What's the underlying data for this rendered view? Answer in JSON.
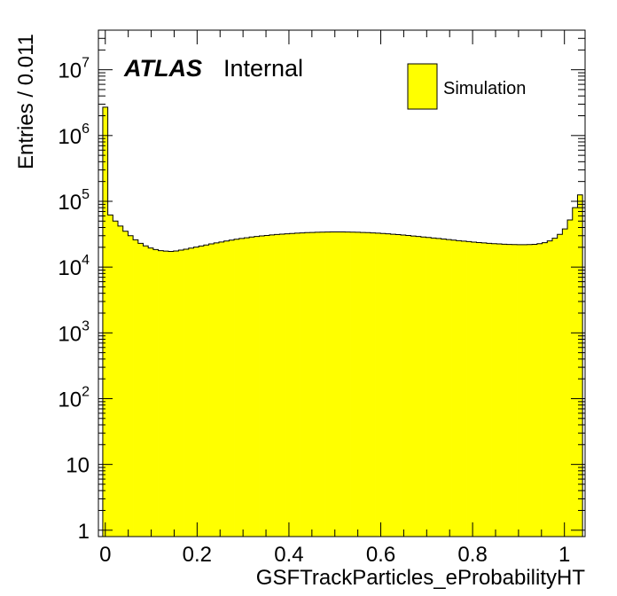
{
  "chart_data": {
    "type": "histogram",
    "xlabel": "GSFTrackParticles_eProbabilityHT",
    "ylabel": "Entries / 0.011",
    "xlim": [
      -0.015,
      1.045
    ],
    "ylim": [
      0.8,
      40000000
    ],
    "yscale": "log",
    "grid": false,
    "legend_position": "top-right",
    "x_ticks": [
      0,
      0.2,
      0.4,
      0.6,
      0.8,
      1
    ],
    "x_tick_labels": [
      "0",
      "0.2",
      "0.4",
      "0.6",
      "0.8",
      "1"
    ],
    "y_ticks": [
      {
        "value": 1,
        "base": "1",
        "exp": ""
      },
      {
        "value": 10,
        "base": "10",
        "exp": ""
      },
      {
        "value": 100,
        "base": "10",
        "exp": "2"
      },
      {
        "value": 1000,
        "base": "10",
        "exp": "3"
      },
      {
        "value": 10000,
        "base": "10",
        "exp": "4"
      },
      {
        "value": 100000,
        "base": "10",
        "exp": "5"
      },
      {
        "value": 1000000,
        "base": "10",
        "exp": "6"
      },
      {
        "value": 10000000,
        "base": "10",
        "exp": "7"
      }
    ],
    "bin_start": -0.0055,
    "bin_width": 0.011,
    "counts": [
      2700000,
      62000,
      50000,
      42000,
      35000,
      30000,
      26000,
      23000,
      21000,
      19500,
      18500,
      17800,
      17500,
      17300,
      17600,
      18100,
      18700,
      19400,
      20100,
      20900,
      21700,
      22500,
      23300,
      24100,
      24900,
      25700,
      26500,
      27200,
      27900,
      28600,
      29200,
      29800,
      30300,
      30800,
      31300,
      31700,
      32100,
      32500,
      32800,
      33100,
      33400,
      33600,
      33800,
      34000,
      34100,
      34200,
      34200,
      34200,
      34100,
      34000,
      33800,
      33600,
      33400,
      33100,
      32800,
      32400,
      32000,
      31600,
      31200,
      30700,
      30200,
      29700,
      29200,
      28700,
      28200,
      27700,
      27200,
      26700,
      26200,
      25700,
      25200,
      24800,
      24400,
      24000,
      23600,
      23300,
      23000,
      22700,
      22500,
      22300,
      22100,
      22000,
      21900,
      21900,
      22000,
      22200,
      22700,
      23500,
      25000,
      27500,
      31500,
      38000,
      52000,
      80000,
      125000
    ],
    "series": [
      {
        "name": "Simulation",
        "color": "#ffff00",
        "edgecolor": "#000000"
      }
    ],
    "annotations": {
      "experiment": "ATLAS",
      "status": "Internal"
    }
  }
}
